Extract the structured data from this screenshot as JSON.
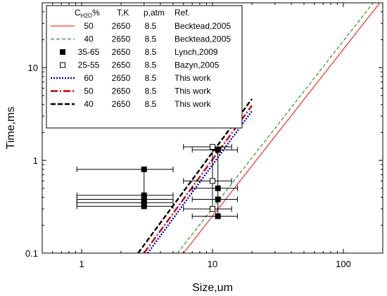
{
  "chart_data": {
    "type": "scatter",
    "xlabel": "Size,um",
    "ylabel": "Time,ms",
    "x_scale": "log",
    "y_scale": "log",
    "xlim": [
      0.5,
      200
    ],
    "ylim": [
      0.1,
      50
    ],
    "x_ticks": [
      {
        "value": 1,
        "label": "1"
      },
      {
        "value": 10,
        "label": "10"
      },
      {
        "value": 100,
        "label": "100"
      }
    ],
    "y_ticks": [
      {
        "value": 0.1,
        "label": "0.1"
      },
      {
        "value": 1,
        "label": "1"
      },
      {
        "value": 10,
        "label": "10"
      }
    ],
    "legend": {
      "position": "top-left",
      "headers": {
        "c_base": "C",
        "c_sub": "H2O",
        "c_suffix": "%",
        "t": "T,K",
        "p": "p,atm",
        "ref": "Ref."
      },
      "entries": [
        {
          "series": 0,
          "c": "50",
          "t": "2650",
          "p": "8.5",
          "ref": "Becktead,2005"
        },
        {
          "series": 1,
          "c": "40",
          "t": "2650",
          "p": "8.5",
          "ref": "Becktead,2005"
        },
        {
          "series": 2,
          "c": "35-65",
          "t": "2650",
          "p": "8.5",
          "ref": "Lynch,2009"
        },
        {
          "series": 3,
          "c": "25-55",
          "t": "2650",
          "p": "8.5",
          "ref": "Bazyn,2005"
        },
        {
          "series": 4,
          "c": "60",
          "t": "2650",
          "p": "8.5",
          "ref": "This work"
        },
        {
          "series": 5,
          "c": "50",
          "t": "2650",
          "p": "8.5",
          "ref": "This work"
        },
        {
          "series": 6,
          "c": "40",
          "t": "2650",
          "p": "8.5",
          "ref": "This work"
        }
      ]
    },
    "series": [
      {
        "kind": "line",
        "color": "#ff0000",
        "dash": "",
        "width": 1,
        "points": [
          [
            6.0,
            0.1
          ],
          [
            200,
            55
          ]
        ]
      },
      {
        "kind": "line",
        "color": "#008000",
        "dash": "5,3",
        "width": 1,
        "points": [
          [
            5.4,
            0.1
          ],
          [
            200,
            68
          ]
        ]
      },
      {
        "kind": "points",
        "marker": "filled-square",
        "color": "#000000",
        "points": [
          {
            "x": 3.0,
            "y": 0.8,
            "xerr": [
              0.92,
              5.0
            ]
          },
          {
            "x": 3.0,
            "y": 0.42,
            "xerr": [
              0.92,
              5.0
            ]
          },
          {
            "x": 3.0,
            "y": 0.38,
            "xerr": [
              0.92,
              5.0
            ]
          },
          {
            "x": 3.0,
            "y": 0.35,
            "xerr": [
              0.92,
              5.0
            ]
          },
          {
            "x": 3.0,
            "y": 0.32,
            "xerr": [
              0.92,
              5.0
            ]
          },
          {
            "x": 11.0,
            "y": 1.3,
            "xerr": [
              7.0,
              15.5
            ]
          },
          {
            "x": 11.0,
            "y": 0.5,
            "xerr": [
              7.0,
              15.5
            ]
          },
          {
            "x": 11.0,
            "y": 0.38,
            "xerr": [
              7.0,
              15.5
            ]
          },
          {
            "x": 11.0,
            "y": 0.25,
            "xerr": [
              7.0,
              15.5
            ]
          }
        ]
      },
      {
        "kind": "points",
        "marker": "open-square",
        "color": "#000000",
        "points": [
          {
            "x": 10.0,
            "y": 1.4,
            "xerr": [
              6.0,
              14.0
            ]
          },
          {
            "x": 10.0,
            "y": 0.6,
            "xerr": [
              6.0,
              14.0
            ]
          },
          {
            "x": 10.0,
            "y": 0.3,
            "xerr": [
              6.0,
              14.0
            ]
          }
        ]
      },
      {
        "kind": "line",
        "color": "#0000cc",
        "dash": "2,2",
        "width": 2.4,
        "points": [
          [
            3.2,
            0.1
          ],
          [
            20,
            3.4
          ]
        ]
      },
      {
        "kind": "line",
        "color": "#cc0000",
        "dash": "10,3,2,3",
        "width": 2.4,
        "points": [
          [
            3.0,
            0.1
          ],
          [
            20,
            3.9
          ]
        ]
      },
      {
        "kind": "line",
        "color": "#000000",
        "dash": "7,3",
        "width": 2.4,
        "points": [
          [
            2.7,
            0.1
          ],
          [
            20,
            4.6
          ]
        ]
      }
    ],
    "error_bar_links": [
      {
        "x": 3.0,
        "y_from": 0.32,
        "y_to": 0.8
      },
      {
        "x": 11.0,
        "y_from": 0.25,
        "y_to": 1.3
      },
      {
        "x": 10.0,
        "y_from": 0.3,
        "y_to": 1.4
      }
    ]
  }
}
